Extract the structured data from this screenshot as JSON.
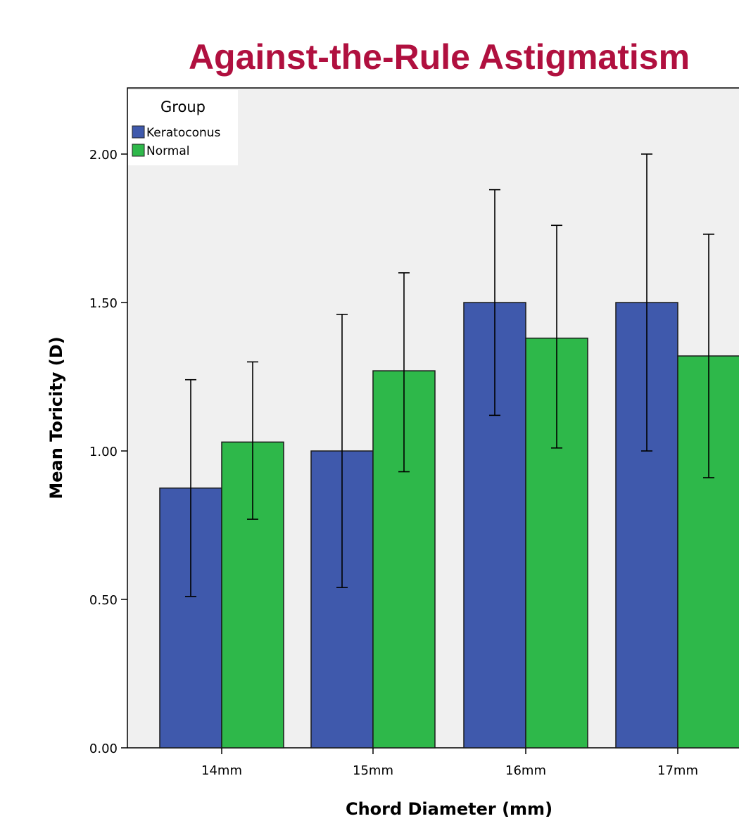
{
  "chart_data": {
    "type": "bar",
    "title": "Against-the-Rule Astigmatism",
    "xlabel": "Chord Diameter (mm)",
    "ylabel": "Mean Toricity (D)",
    "categories": [
      "14mm",
      "15mm",
      "16mm",
      "17mm"
    ],
    "series": [
      {
        "name": "Keratoconus",
        "color": "#3f59ac",
        "values": [
          0.875,
          1.0,
          1.5,
          1.5
        ],
        "error_low": [
          0.51,
          0.54,
          1.12,
          1.0
        ],
        "error_high": [
          1.24,
          1.46,
          1.88,
          2.0
        ]
      },
      {
        "name": "Normal",
        "color": "#2eb84a",
        "values": [
          1.03,
          1.27,
          1.38,
          1.32
        ],
        "error_low": [
          0.77,
          0.93,
          1.01,
          0.91
        ],
        "error_high": [
          1.3,
          1.6,
          1.76,
          1.73
        ]
      }
    ],
    "ylim": [
      0,
      2.2
    ],
    "yticks": [
      "0.00",
      "0.50",
      "1.00",
      "1.50",
      "2.00"
    ],
    "legend": {
      "title": "Group",
      "placement": "top-left"
    },
    "grid": false,
    "colors": {
      "title": "#b0103f",
      "plot_background": "#f0f0f0"
    }
  }
}
